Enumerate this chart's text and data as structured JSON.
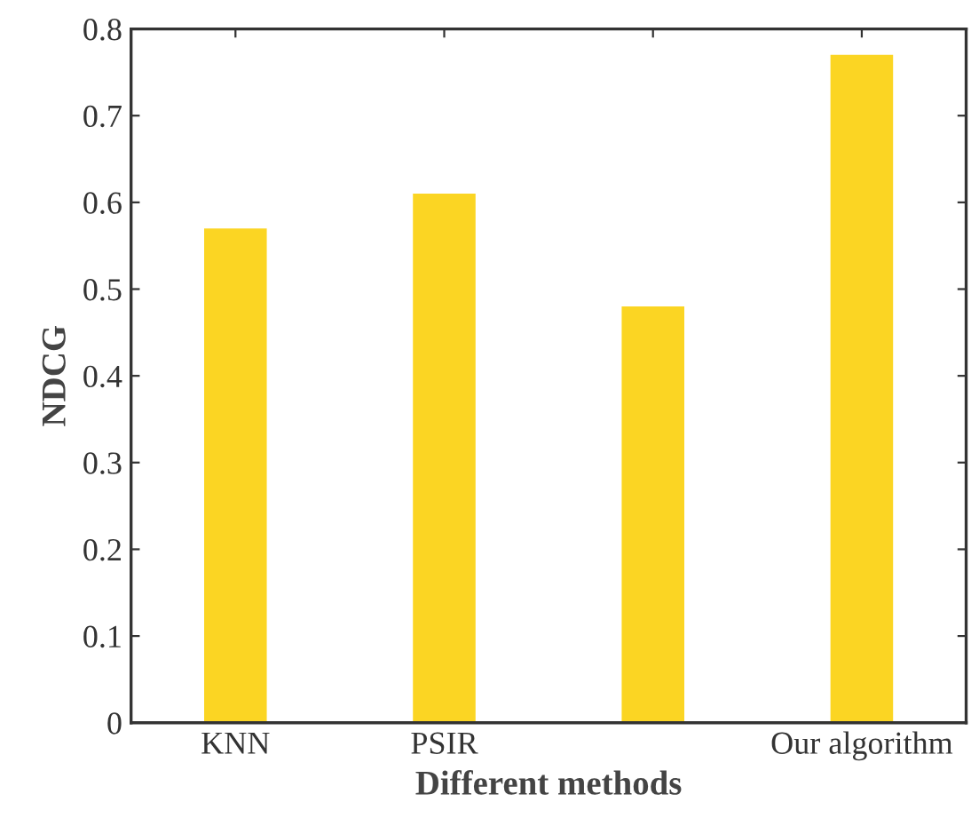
{
  "chart_data": {
    "type": "bar",
    "xlabel": "Different methods",
    "ylabel": "NDCG",
    "categories": [
      "KNN",
      "PSIR",
      null,
      "Our algorithm"
    ],
    "values": [
      0.57,
      0.61,
      0.48,
      0.77
    ],
    "color": "#fbd523",
    "ylim": [
      0,
      0.8
    ],
    "yticks": [
      0,
      0.1,
      0.2,
      0.3,
      0.4,
      0.5,
      0.6,
      0.7,
      0.8
    ],
    "grid": false,
    "legend": false
  }
}
